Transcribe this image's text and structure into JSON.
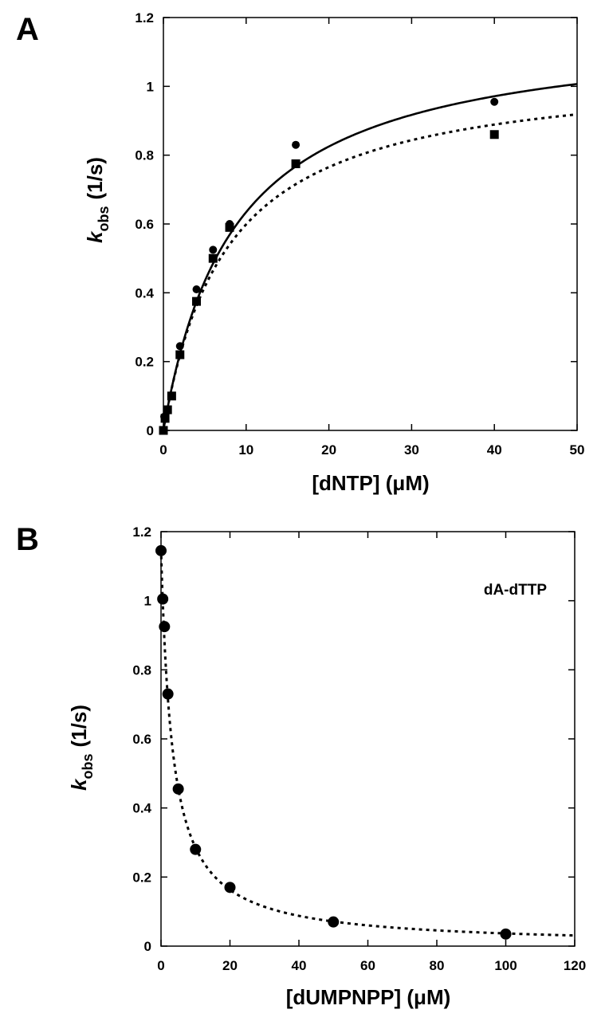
{
  "chart_data": [
    {
      "panel": "A",
      "type": "scatter",
      "xlabel": "[dNTP] (μM)",
      "ylabel": {
        "main": "k",
        "sub": "obs",
        "unit": "(1/s)"
      },
      "xlim": [
        0,
        50
      ],
      "ylim": [
        0,
        1.2
      ],
      "xticks": [
        "0",
        "10",
        "20",
        "30",
        "40",
        "50"
      ],
      "yticks": [
        "0",
        "0.2",
        "0.4",
        "0.6",
        "0.8",
        "1",
        "1.2"
      ],
      "grid": false,
      "legend": null,
      "series": [
        {
          "marker": "circle",
          "fit": "solid",
          "x": [
            0.1,
            0.5,
            1,
            2,
            4,
            6,
            8,
            16,
            40
          ],
          "y": [
            0.04,
            0.06,
            0.1,
            0.245,
            0.41,
            0.525,
            0.6,
            0.83,
            0.955
          ]
        },
        {
          "marker": "square",
          "fit": "dotted",
          "x": [
            0,
            0.2,
            0.5,
            1,
            2,
            4,
            6,
            8,
            16,
            40
          ],
          "y": [
            0,
            0.035,
            0.06,
            0.1,
            0.22,
            0.375,
            0.5,
            0.59,
            0.775,
            0.86
          ]
        }
      ],
      "fits": [
        {
          "style": "solid",
          "model": "hyperbola",
          "kmax": 1.18,
          "kd": 8.6
        },
        {
          "style": "dotted",
          "model": "hyperbola",
          "kmax": 1.06,
          "kd": 7.7
        }
      ]
    },
    {
      "panel": "B",
      "type": "scatter",
      "xlabel": "[dUMPNPP] (μM)",
      "ylabel": {
        "main": "k",
        "sub": "obs",
        "unit": "(1/s)"
      },
      "xlim": [
        0,
        120
      ],
      "ylim": [
        0,
        1.2
      ],
      "xticks": [
        "0",
        "20",
        "40",
        "60",
        "80",
        "100",
        "120"
      ],
      "yticks": [
        "0",
        "0.2",
        "0.4",
        "0.6",
        "0.8",
        "1",
        "1.2"
      ],
      "grid": false,
      "legend": null,
      "annotation": "dA-dTTP",
      "series": [
        {
          "marker": "circle",
          "fit": "dotted",
          "x": [
            0,
            0.5,
            1,
            2,
            5,
            10,
            20,
            50,
            100
          ],
          "y": [
            1.145,
            1.005,
            0.925,
            0.73,
            0.455,
            0.28,
            0.17,
            0.07,
            0.035
          ]
        }
      ],
      "fits": [
        {
          "style": "dotted",
          "model": "inhibition",
          "k0": 1.15,
          "ki": 3.3,
          "xmin": 0,
          "xmax": 120
        }
      ]
    }
  ]
}
